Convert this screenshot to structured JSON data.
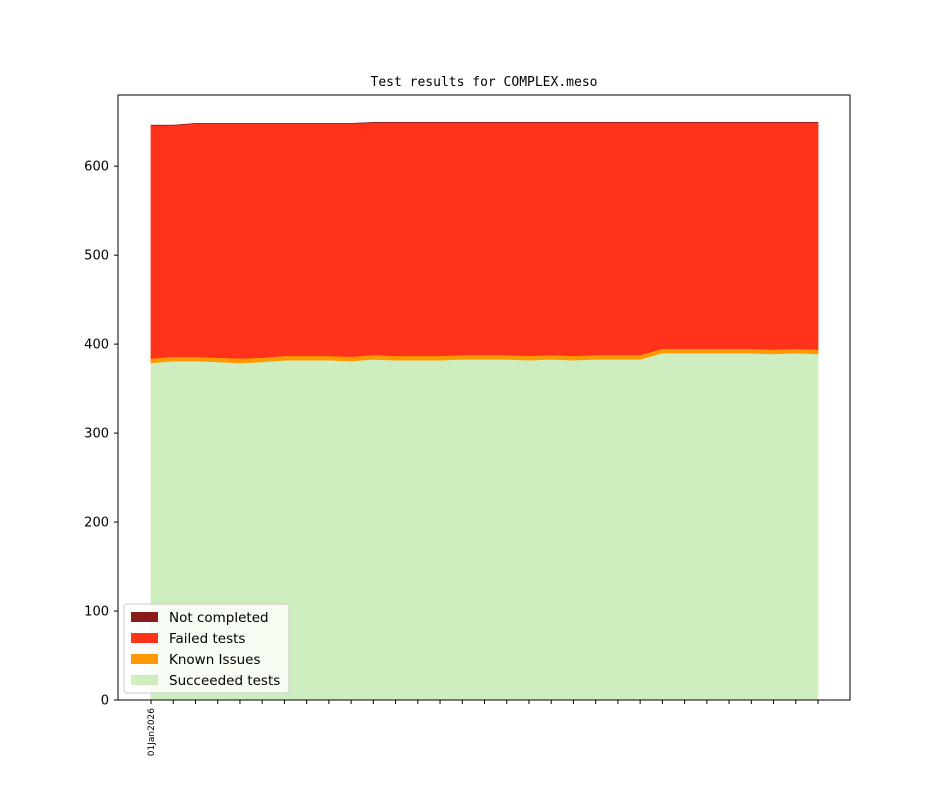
{
  "chart_data": {
    "type": "area",
    "stacked": true,
    "title": "Test results for COMPLEX.meso",
    "xlabel": "",
    "ylabel": "",
    "ylim": [
      0,
      680
    ],
    "yticks": [
      0,
      100,
      200,
      300,
      400,
      500,
      600
    ],
    "x_tick_labels": [
      "01Jan2026"
    ],
    "legend_position": "lower-left",
    "grid": false,
    "series": [
      {
        "name": "Succeeded tests",
        "color": "#cfeebf",
        "values": [
          379,
          381,
          381,
          380,
          379,
          380,
          382,
          382,
          382,
          381,
          383,
          382,
          382,
          382,
          383,
          383,
          383,
          382,
          383,
          382,
          383,
          383,
          383,
          390,
          390,
          390,
          390,
          390,
          389,
          390,
          389
        ]
      },
      {
        "name": "Known Issues",
        "color": "#ff9900",
        "values": [
          5,
          5,
          5,
          5,
          5,
          5,
          5,
          5,
          5,
          5,
          5,
          5,
          5,
          5,
          5,
          5,
          5,
          5,
          5,
          5,
          5,
          5,
          5,
          5,
          5,
          5,
          5,
          5,
          5,
          5,
          5
        ]
      },
      {
        "name": "Failed tests",
        "color": "#ff331a",
        "values": [
          262,
          260,
          262,
          263,
          264,
          263,
          261,
          261,
          261,
          262,
          261,
          262,
          262,
          262,
          261,
          261,
          261,
          262,
          261,
          262,
          261,
          261,
          261,
          254,
          254,
          254,
          254,
          254,
          255,
          254,
          255
        ]
      },
      {
        "name": "Not completed",
        "color": "#8b1a1a",
        "values": [
          0,
          0,
          0,
          0,
          0,
          0,
          0,
          0,
          0,
          0,
          0,
          0,
          0,
          0,
          0,
          0,
          0,
          0,
          0,
          0,
          0,
          0,
          0,
          0,
          0,
          0,
          0,
          0,
          0,
          0,
          0
        ]
      }
    ],
    "legend_order": [
      "Not completed",
      "Failed tests",
      "Known Issues",
      "Succeeded tests"
    ]
  }
}
